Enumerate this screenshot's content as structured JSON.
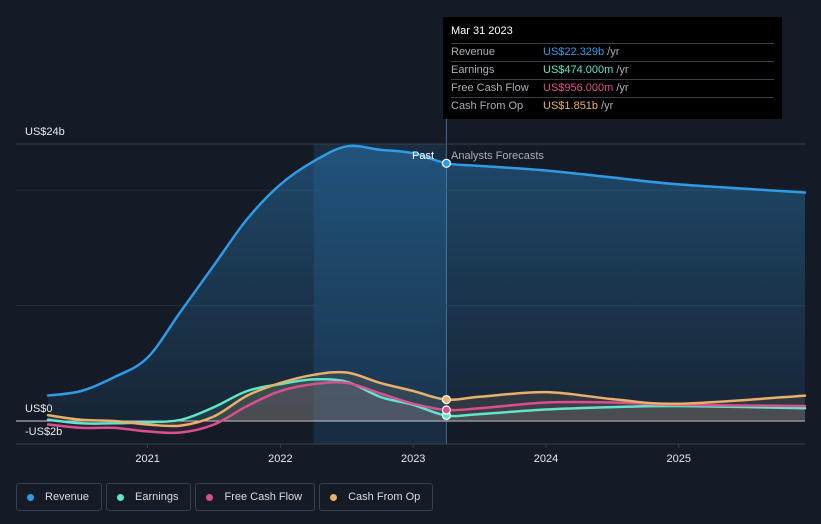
{
  "tooltip": {
    "date": "Mar 31 2023",
    "rows": [
      {
        "label": "Revenue",
        "value": "US$22.329b",
        "unit": "/yr",
        "color": "#2f9be6"
      },
      {
        "label": "Earnings",
        "value": "US$474.000m",
        "unit": "/yr",
        "color": "#5ee6c8"
      },
      {
        "label": "Free Cash Flow",
        "value": "US$956.000m",
        "unit": "/yr",
        "color": "#d9508f"
      },
      {
        "label": "Cash From Op",
        "value": "US$1.851b",
        "unit": "/yr",
        "color": "#e8b06a"
      }
    ]
  },
  "chart_data": {
    "type": "line",
    "y_tick_labels": [
      "US$24b",
      "US$0",
      "-US$2b"
    ],
    "ylim": [
      -2,
      24
    ],
    "xlim": [
      2020.25,
      2025.95
    ],
    "x_tick_labels": [
      "2021",
      "2022",
      "2023",
      "2024",
      "2025"
    ],
    "x_ticks": [
      2021,
      2022,
      2023,
      2024,
      2025
    ],
    "past_label": "Past",
    "forecast_label": "Analysts Forecasts",
    "divider_x": 2023.25,
    "past_region_start": 2022.25,
    "series": [
      {
        "name": "Revenue",
        "color": "#2f9be6",
        "points": [
          [
            2020.25,
            2.2
          ],
          [
            2020.5,
            2.6
          ],
          [
            2020.75,
            3.8
          ],
          [
            2021,
            5.5
          ],
          [
            2021.25,
            9.5
          ],
          [
            2021.5,
            13.5
          ],
          [
            2021.75,
            17.5
          ],
          [
            2022,
            20.5
          ],
          [
            2022.25,
            22.5
          ],
          [
            2022.5,
            23.8
          ],
          [
            2022.75,
            23.5
          ],
          [
            2023,
            23.2
          ],
          [
            2023.25,
            22.33
          ],
          [
            2023.5,
            22.1
          ],
          [
            2024,
            21.7
          ],
          [
            2024.5,
            21.1
          ],
          [
            2025,
            20.5
          ],
          [
            2025.95,
            19.8
          ]
        ]
      },
      {
        "name": "Earnings",
        "color": "#5ee6c8",
        "points": [
          [
            2020.25,
            0.1
          ],
          [
            2020.5,
            -0.2
          ],
          [
            2020.75,
            -0.2
          ],
          [
            2021,
            -0.1
          ],
          [
            2021.25,
            0.1
          ],
          [
            2021.5,
            1.2
          ],
          [
            2021.75,
            2.6
          ],
          [
            2022,
            3.2
          ],
          [
            2022.25,
            3.6
          ],
          [
            2022.5,
            3.4
          ],
          [
            2022.75,
            2.1
          ],
          [
            2023,
            1.4
          ],
          [
            2023.25,
            0.474
          ],
          [
            2023.5,
            0.6
          ],
          [
            2024,
            1.0
          ],
          [
            2024.5,
            1.2
          ],
          [
            2025,
            1.3
          ],
          [
            2025.95,
            1.1
          ]
        ]
      },
      {
        "name": "Free Cash Flow",
        "color": "#d9508f",
        "points": [
          [
            2020.25,
            -0.3
          ],
          [
            2020.5,
            -0.6
          ],
          [
            2020.75,
            -0.6
          ],
          [
            2021,
            -0.9
          ],
          [
            2021.25,
            -1.0
          ],
          [
            2021.5,
            -0.3
          ],
          [
            2021.75,
            1.3
          ],
          [
            2022,
            2.6
          ],
          [
            2022.25,
            3.2
          ],
          [
            2022.5,
            3.3
          ],
          [
            2022.75,
            2.4
          ],
          [
            2023,
            1.5
          ],
          [
            2023.25,
            0.956
          ],
          [
            2023.5,
            1.1
          ],
          [
            2024,
            1.6
          ],
          [
            2024.5,
            1.6
          ],
          [
            2025,
            1.4
          ],
          [
            2025.95,
            1.3
          ]
        ]
      },
      {
        "name": "Cash From Op",
        "color": "#e8b06a",
        "points": [
          [
            2020.25,
            0.5
          ],
          [
            2020.5,
            0.1
          ],
          [
            2020.75,
            0.0
          ],
          [
            2021,
            -0.3
          ],
          [
            2021.25,
            -0.4
          ],
          [
            2021.5,
            0.4
          ],
          [
            2021.75,
            2.2
          ],
          [
            2022,
            3.3
          ],
          [
            2022.25,
            4.0
          ],
          [
            2022.5,
            4.2
          ],
          [
            2022.75,
            3.3
          ],
          [
            2023,
            2.6
          ],
          [
            2023.25,
            1.851
          ],
          [
            2023.5,
            2.1
          ],
          [
            2024,
            2.5
          ],
          [
            2024.5,
            1.9
          ],
          [
            2025,
            1.5
          ],
          [
            2025.95,
            2.2
          ]
        ]
      }
    ]
  }
}
